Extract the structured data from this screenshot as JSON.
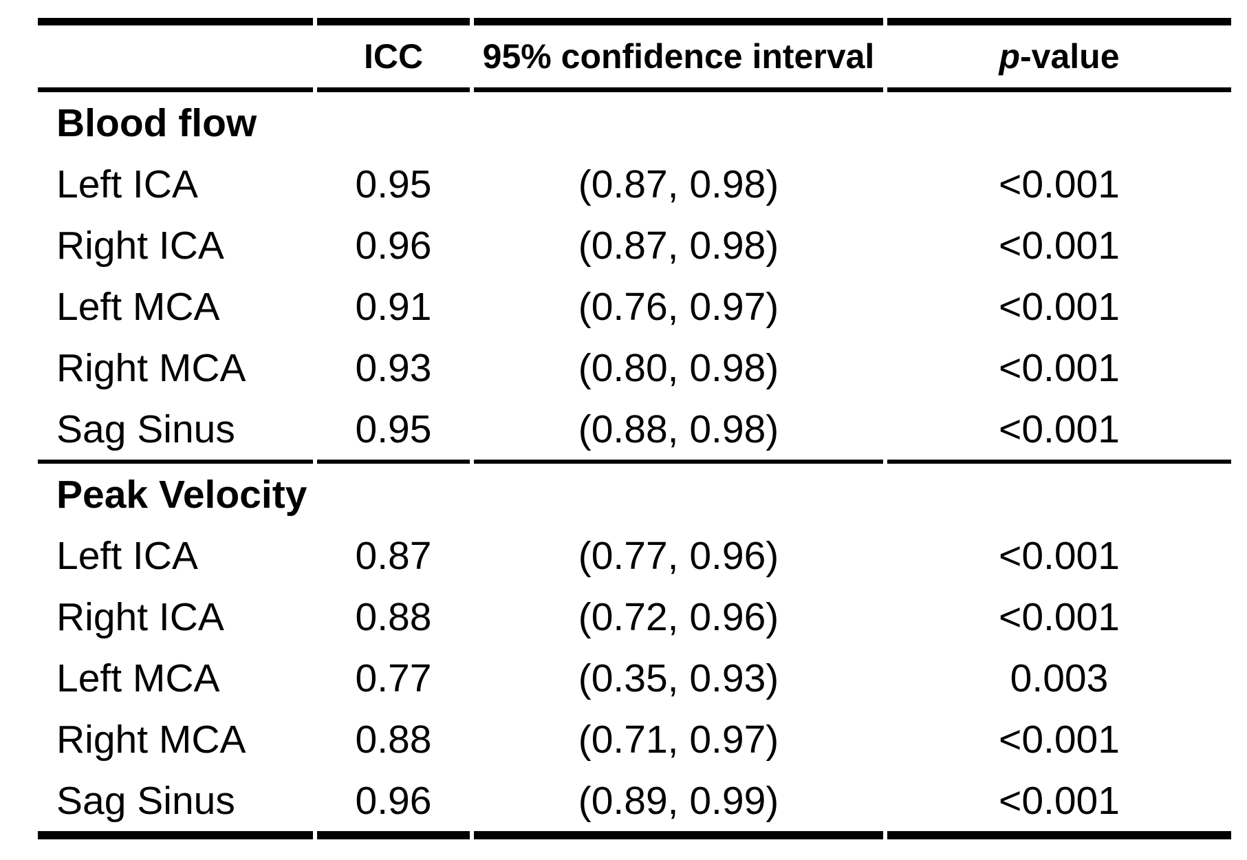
{
  "meta": {
    "background_color": "#ffffff",
    "text_color": "#000000",
    "rule_color": "#000000"
  },
  "table": {
    "header": {
      "col1": "",
      "icc": "ICC",
      "ci": "95% confidence interval",
      "p_italic": "p",
      "p_rest": "-value"
    },
    "sections": [
      {
        "title": "Blood flow",
        "rows": [
          {
            "label": "Left ICA",
            "icc": "0.95",
            "ci": "(0.87, 0.98)",
            "p": "<0.001"
          },
          {
            "label": "Right ICA",
            "icc": "0.96",
            "ci": "(0.87, 0.98)",
            "p": "<0.001"
          },
          {
            "label": "Left MCA",
            "icc": "0.91",
            "ci": "(0.76, 0.97)",
            "p": "<0.001"
          },
          {
            "label": "Right MCA",
            "icc": "0.93",
            "ci": "(0.80, 0.98)",
            "p": "<0.001"
          },
          {
            "label": "Sag Sinus",
            "icc": "0.95",
            "ci": "(0.88, 0.98)",
            "p": "<0.001"
          }
        ]
      },
      {
        "title": "Peak Velocity",
        "rows": [
          {
            "label": "Left ICA",
            "icc": "0.87",
            "ci": "(0.77, 0.96)",
            "p": "<0.001"
          },
          {
            "label": "Right ICA",
            "icc": "0.88",
            "ci": "(0.72, 0.96)",
            "p": "<0.001"
          },
          {
            "label": "Left MCA",
            "icc": "0.77",
            "ci": "(0.35, 0.93)",
            "p": "0.003"
          },
          {
            "label": "Right MCA",
            "icc": "0.88",
            "ci": "(0.71, 0.97)",
            "p": "<0.001"
          },
          {
            "label": "Sag Sinus",
            "icc": "0.96",
            "ci": "(0.89, 0.99)",
            "p": "<0.001"
          }
        ]
      }
    ]
  }
}
